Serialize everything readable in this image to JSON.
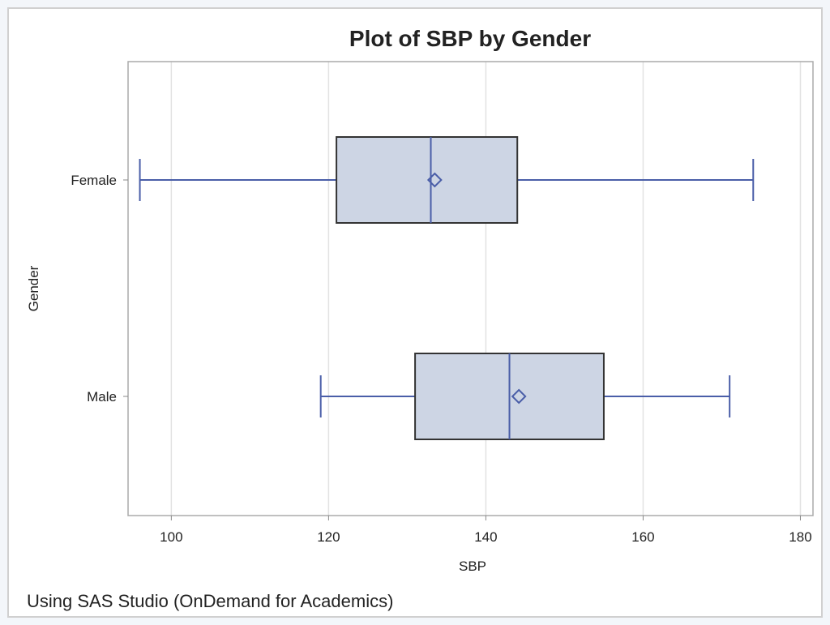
{
  "chart_data": {
    "type": "box",
    "orientation": "horizontal",
    "title": "Plot of SBP by Gender",
    "xlabel": "SBP",
    "ylabel": "Gender",
    "xlim": [
      94.5,
      181.6
    ],
    "xticks": [
      100,
      120,
      140,
      160,
      180
    ],
    "grid": "vertical",
    "categories": [
      "Female",
      "Male"
    ],
    "boxes": [
      {
        "category": "Female",
        "min": 96,
        "q1": 121,
        "median": 133,
        "mean": 133.5,
        "q3": 144,
        "max": 174
      },
      {
        "category": "Male",
        "min": 119,
        "q1": 131,
        "median": 143,
        "mean": 144.2,
        "q3": 155,
        "max": 171
      }
    ],
    "colors": {
      "box_fill": "#cdd5e4",
      "box_edge": "#333333",
      "whisker": "#4a5ea8",
      "grid": "#e2e2e2"
    }
  },
  "footnote": "Using SAS Studio (OnDemand for Academics)"
}
